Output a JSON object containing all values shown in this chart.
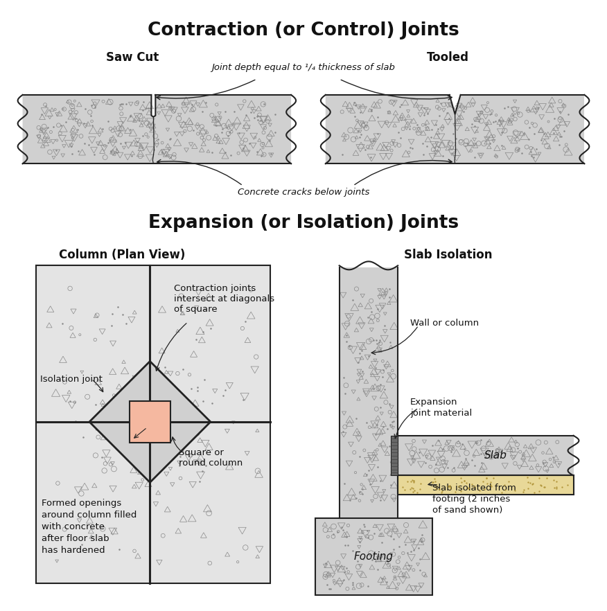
{
  "title_top": "Contraction (or Control) Joints",
  "title_bottom": "Expansion (or Isolation) Joints",
  "subtitle_saw": "Saw Cut",
  "subtitle_tooled": "Tooled",
  "subtitle_column": "Column (Plan View)",
  "subtitle_slab": "Slab Isolation",
  "label_joint_depth": "Joint depth equal to ¹/₄ thickness of slab",
  "label_cracks": "Concrete cracks below joints",
  "label_isolation_joint": "Isolation joint",
  "label_contraction_intersect": "Contraction joints\nintersect at diagonals\nof square",
  "label_square_column": "Square or\nround column",
  "label_formed_openings": "Formed openings\naround column filled\nwith concrete\nafter floor slab\nhas hardened",
  "label_wall_column": "Wall or column",
  "label_expansion_joint": "Expansion\njoint material",
  "label_slab": "Slab",
  "label_footing": "Footing",
  "label_slab_isolated": "Slab isolated from\nfooting (2 inches\nof sand shown)",
  "concrete_color": "#d0d0d0",
  "column_fill": "#f5b8a0",
  "sand_color": "#e8d898",
  "expansion_material_color": "#808080",
  "bg_color": "#ffffff",
  "outline_color": "#222222",
  "text_color": "#111111",
  "light_gray_bg": "#e4e4e4"
}
